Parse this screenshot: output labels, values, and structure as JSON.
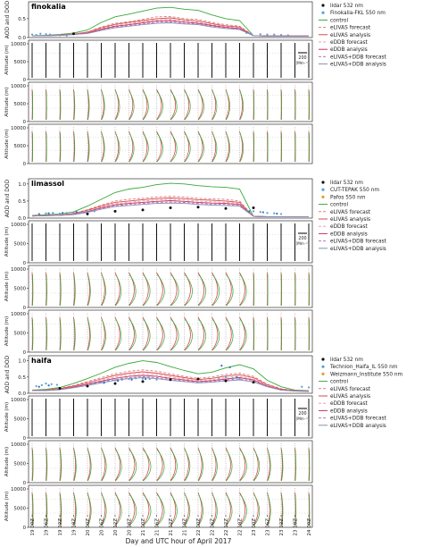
{
  "figure": {
    "xlabel": "Day and UTC hour of April 2017",
    "xticks": [
      "19 00Z",
      "19 06Z",
      "19 12Z",
      "19 18Z",
      "20 00Z",
      "20 06Z",
      "20 12Z",
      "20 18Z",
      "21 00Z",
      "21 06Z",
      "21 12Z",
      "21 18Z",
      "22 00Z",
      "22 06Z",
      "22 12Z",
      "22 18Z",
      "23 00Z",
      "23 06Z",
      "23 12Z",
      "23 18Z",
      "24 00Z"
    ]
  },
  "colors": {
    "control": "#3aa83a",
    "elivas_forecast": "#e07a7a",
    "elivas_analysis": "#d64a4a",
    "edbb_forecast": "#e8a0b0",
    "edbb_analysis": "#c9305a",
    "combo_forecast": "#b07ab8",
    "combo_analysis": "#8a8ab8",
    "lidar": "#111111",
    "obs1": "#5aa0d8",
    "obs2": "#e0a030",
    "obs3": "#3070c0"
  },
  "legend_common": [
    "control",
    "eLIVAS forecast",
    "eLIVAS analysis",
    "eDDB forecast",
    "eDDB analysis",
    "eLIVAS+DDB forecast",
    "eLIVAS+DDB analysis"
  ],
  "stations": [
    {
      "name": "finokalia",
      "aod_ylabel": "AOD and DOD",
      "alt_ylabel": "Altitude (m)",
      "alt_ticks": [
        "0",
        "5000",
        "10000"
      ],
      "aod_ticks": [
        "0.0",
        "0.5"
      ],
      "obs_legend": [
        "lidar 532 nm",
        "Finokalia-FKL 550 nm"
      ],
      "scale_label": "200",
      "scale_unit": "[Mm⁻¹]"
    },
    {
      "name": "limassol",
      "aod_ylabel": "AOD and DOD",
      "alt_ylabel": "Altitude (m)",
      "alt_ticks": [
        "0",
        "5000",
        "10000"
      ],
      "aod_ticks": [
        "0.0",
        "0.5",
        "1.0"
      ],
      "obs_legend": [
        "lidar 532 nm",
        "CUT-TEPAK 550 nm",
        "Pafos 550 nm"
      ],
      "scale_label": "200",
      "scale_unit": "[Mm⁻¹]"
    },
    {
      "name": "haifa",
      "aod_ylabel": "AOD and DOD",
      "alt_ylabel": "Altitude (m)",
      "alt_ticks": [
        "0",
        "5000",
        "10000"
      ],
      "aod_ticks": [
        "0.0",
        "0.5",
        "1.0"
      ],
      "obs_legend": [
        "lidar 532 nm",
        "Technion_Haifa_IL 550 nm",
        "Weizmann_Institute 550 nm"
      ],
      "scale_label": "200",
      "scale_unit": "[Mm⁻¹]"
    }
  ],
  "chart_data": [
    {
      "type": "line",
      "title": "finokalia",
      "ylabel": "AOD and DOD",
      "x": [
        "19 00Z",
        "19 06Z",
        "19 12Z",
        "19 18Z",
        "20 00Z",
        "20 06Z",
        "20 12Z",
        "20 18Z",
        "21 00Z",
        "21 06Z",
        "21 12Z",
        "21 18Z",
        "22 00Z",
        "22 06Z",
        "22 12Z",
        "22 18Z",
        "23 00Z",
        "23 06Z",
        "23 12Z",
        "23 18Z",
        "24 00Z"
      ],
      "ylim": [
        0,
        0.9
      ],
      "series": [
        {
          "name": "control",
          "values": [
            0.05,
            0.06,
            0.08,
            0.12,
            0.2,
            0.4,
            0.55,
            0.62,
            0.7,
            0.78,
            0.8,
            0.75,
            0.72,
            0.6,
            0.5,
            0.45,
            0.05,
            0.04,
            0.04,
            0.04,
            0.04
          ]
        },
        {
          "name": "eLIVAS forecast",
          "values": [
            0.05,
            0.05,
            0.07,
            0.1,
            0.15,
            0.28,
            0.38,
            0.42,
            0.48,
            0.55,
            0.56,
            0.5,
            0.48,
            0.4,
            0.34,
            0.3,
            0.05,
            0.04,
            0.04,
            0.04,
            0.04
          ]
        },
        {
          "name": "eLIVAS analysis",
          "values": [
            0.05,
            0.05,
            0.07,
            0.09,
            0.14,
            0.26,
            0.35,
            0.4,
            0.45,
            0.5,
            0.52,
            0.47,
            0.44,
            0.37,
            0.31,
            0.28,
            0.05,
            0.04,
            0.04,
            0.04,
            0.04
          ]
        },
        {
          "name": "eDDB forecast",
          "values": [
            0.05,
            0.05,
            0.06,
            0.09,
            0.13,
            0.24,
            0.33,
            0.37,
            0.42,
            0.47,
            0.48,
            0.44,
            0.41,
            0.34,
            0.29,
            0.26,
            0.05,
            0.04,
            0.04,
            0.04,
            0.04
          ]
        },
        {
          "name": "eDDB analysis",
          "values": [
            0.05,
            0.05,
            0.06,
            0.08,
            0.12,
            0.22,
            0.3,
            0.34,
            0.39,
            0.44,
            0.45,
            0.41,
            0.38,
            0.32,
            0.27,
            0.24,
            0.05,
            0.04,
            0.04,
            0.04,
            0.04
          ]
        },
        {
          "name": "eLIVAS+DDB forecast",
          "values": [
            0.05,
            0.05,
            0.06,
            0.08,
            0.11,
            0.2,
            0.28,
            0.32,
            0.36,
            0.41,
            0.42,
            0.38,
            0.36,
            0.3,
            0.25,
            0.22,
            0.05,
            0.04,
            0.04,
            0.04,
            0.04
          ]
        },
        {
          "name": "eLIVAS+DDB analysis",
          "values": [
            0.05,
            0.05,
            0.06,
            0.08,
            0.11,
            0.19,
            0.26,
            0.3,
            0.34,
            0.38,
            0.39,
            0.36,
            0.34,
            0.28,
            0.24,
            0.21,
            0.05,
            0.04,
            0.04,
            0.04,
            0.04
          ]
        }
      ],
      "points": [
        {
          "name": "lidar 532 nm",
          "x": [
            3
          ],
          "values": [
            0.1
          ]
        },
        {
          "name": "Finokalia-FKL 550 nm",
          "x": [
            0,
            0.3,
            0.6,
            1,
            1.3,
            2,
            2.5,
            15.5,
            15.8,
            16.5,
            17,
            17.5,
            18,
            18.5
          ],
          "values": [
            0.08,
            0.07,
            0.1,
            0.09,
            0.08,
            0.06,
            0.05,
            0.12,
            0.11,
            0.09,
            0.08,
            0.08,
            0.07,
            0.06
          ]
        }
      ]
    },
    {
      "type": "line",
      "title": "limassol",
      "ylabel": "AOD and DOD",
      "x": [
        "19 00Z",
        "19 06Z",
        "19 12Z",
        "19 18Z",
        "20 00Z",
        "20 06Z",
        "20 12Z",
        "20 18Z",
        "21 00Z",
        "21 06Z",
        "21 12Z",
        "21 18Z",
        "22 00Z",
        "22 06Z",
        "22 12Z",
        "22 18Z",
        "23 00Z",
        "23 06Z",
        "23 12Z",
        "23 18Z",
        "24 00Z"
      ],
      "ylim": [
        0,
        1.1
      ],
      "series": [
        {
          "name": "control",
          "values": [
            0.08,
            0.1,
            0.12,
            0.18,
            0.35,
            0.55,
            0.75,
            0.85,
            0.9,
            0.98,
            1.02,
            1.0,
            0.95,
            0.92,
            0.9,
            0.85,
            0.05,
            0.04,
            0.04,
            0.04,
            0.04
          ]
        },
        {
          "name": "eLIVAS forecast",
          "values": [
            0.07,
            0.08,
            0.1,
            0.14,
            0.25,
            0.38,
            0.5,
            0.55,
            0.58,
            0.62,
            0.64,
            0.62,
            0.58,
            0.56,
            0.55,
            0.5,
            0.05,
            0.04,
            0.04,
            0.04,
            0.04
          ]
        },
        {
          "name": "eLIVAS analysis",
          "values": [
            0.07,
            0.08,
            0.09,
            0.13,
            0.23,
            0.35,
            0.46,
            0.5,
            0.54,
            0.57,
            0.59,
            0.57,
            0.54,
            0.52,
            0.5,
            0.46,
            0.05,
            0.04,
            0.04,
            0.04,
            0.04
          ]
        },
        {
          "name": "eDDB forecast",
          "values": [
            0.07,
            0.08,
            0.09,
            0.12,
            0.21,
            0.32,
            0.42,
            0.46,
            0.5,
            0.53,
            0.55,
            0.53,
            0.5,
            0.48,
            0.46,
            0.43,
            0.05,
            0.04,
            0.04,
            0.04,
            0.04
          ]
        },
        {
          "name": "eDDB analysis",
          "values": [
            0.06,
            0.07,
            0.08,
            0.11,
            0.19,
            0.3,
            0.39,
            0.43,
            0.46,
            0.49,
            0.51,
            0.49,
            0.46,
            0.44,
            0.43,
            0.4,
            0.05,
            0.04,
            0.04,
            0.04,
            0.04
          ]
        },
        {
          "name": "eLIVAS+DDB forecast",
          "values": [
            0.06,
            0.07,
            0.08,
            0.11,
            0.18,
            0.28,
            0.36,
            0.4,
            0.43,
            0.46,
            0.47,
            0.46,
            0.43,
            0.41,
            0.4,
            0.37,
            0.05,
            0.04,
            0.04,
            0.04,
            0.04
          ]
        },
        {
          "name": "eLIVAS+DDB analysis",
          "values": [
            0.06,
            0.07,
            0.08,
            0.1,
            0.17,
            0.26,
            0.34,
            0.37,
            0.4,
            0.43,
            0.44,
            0.43,
            0.4,
            0.38,
            0.37,
            0.35,
            0.05,
            0.04,
            0.04,
            0.04,
            0.04
          ]
        }
      ],
      "points": [
        {
          "name": "lidar 532 nm",
          "x": [
            4,
            6,
            8,
            10,
            12,
            14,
            16
          ],
          "values": [
            0.12,
            0.2,
            0.24,
            0.3,
            0.32,
            0.28,
            0.3
          ]
        },
        {
          "name": "CUT-TEPAK 550 nm",
          "x": [
            1,
            1.5,
            2,
            2.5,
            3,
            3.5,
            4,
            4.5,
            15.5,
            16,
            16.5,
            17,
            17.5,
            18
          ],
          "values": [
            0.14,
            0.15,
            0.13,
            0.15,
            0.16,
            0.17,
            0.19,
            0.2,
            0.22,
            0.2,
            0.18,
            0.15,
            0.14,
            0.12
          ]
        },
        {
          "name": "Pafos 550 nm",
          "x": [
            0.5,
            1.2,
            2.2,
            3.2,
            15.7,
            16.7,
            17.7
          ],
          "values": [
            0.12,
            0.14,
            0.15,
            0.18,
            0.2,
            0.17,
            0.13
          ]
        }
      ]
    },
    {
      "type": "line",
      "title": "haifa",
      "ylabel": "AOD and DOD",
      "x": [
        "19 00Z",
        "19 06Z",
        "19 12Z",
        "19 18Z",
        "20 00Z",
        "20 06Z",
        "20 12Z",
        "20 18Z",
        "21 00Z",
        "21 06Z",
        "21 12Z",
        "21 18Z",
        "22 00Z",
        "22 06Z",
        "22 12Z",
        "22 18Z",
        "23 00Z",
        "23 06Z",
        "23 12Z",
        "23 18Z",
        "24 00Z"
      ],
      "ylim": [
        0,
        1.1
      ],
      "series": [
        {
          "name": "control",
          "values": [
            0.1,
            0.12,
            0.18,
            0.3,
            0.45,
            0.62,
            0.8,
            0.92,
            1.0,
            0.95,
            0.82,
            0.7,
            0.6,
            0.65,
            0.78,
            0.88,
            0.75,
            0.4,
            0.2,
            0.1,
            0.08
          ]
        },
        {
          "name": "eLIVAS forecast",
          "values": [
            0.09,
            0.1,
            0.15,
            0.24,
            0.36,
            0.48,
            0.6,
            0.68,
            0.72,
            0.68,
            0.6,
            0.52,
            0.46,
            0.5,
            0.58,
            0.62,
            0.52,
            0.28,
            0.14,
            0.08,
            0.07
          ]
        },
        {
          "name": "eLIVAS analysis",
          "values": [
            0.09,
            0.1,
            0.14,
            0.22,
            0.33,
            0.44,
            0.55,
            0.62,
            0.66,
            0.62,
            0.55,
            0.48,
            0.42,
            0.46,
            0.53,
            0.57,
            0.48,
            0.26,
            0.13,
            0.08,
            0.07
          ]
        },
        {
          "name": "eDDB forecast",
          "values": [
            0.08,
            0.09,
            0.13,
            0.2,
            0.3,
            0.4,
            0.5,
            0.57,
            0.6,
            0.57,
            0.5,
            0.44,
            0.39,
            0.42,
            0.48,
            0.52,
            0.44,
            0.24,
            0.12,
            0.07,
            0.06
          ]
        },
        {
          "name": "eDDB analysis",
          "values": [
            0.08,
            0.09,
            0.12,
            0.19,
            0.28,
            0.37,
            0.46,
            0.52,
            0.55,
            0.52,
            0.46,
            0.41,
            0.36,
            0.39,
            0.44,
            0.48,
            0.41,
            0.22,
            0.11,
            0.07,
            0.06
          ]
        },
        {
          "name": "eLIVAS+DDB forecast",
          "values": [
            0.08,
            0.09,
            0.12,
            0.18,
            0.26,
            0.34,
            0.42,
            0.48,
            0.51,
            0.48,
            0.43,
            0.38,
            0.34,
            0.36,
            0.41,
            0.44,
            0.38,
            0.21,
            0.1,
            0.07,
            0.06
          ]
        },
        {
          "name": "eLIVAS+DDB analysis",
          "values": [
            0.08,
            0.08,
            0.11,
            0.17,
            0.24,
            0.32,
            0.4,
            0.45,
            0.48,
            0.45,
            0.4,
            0.36,
            0.32,
            0.34,
            0.38,
            0.41,
            0.35,
            0.2,
            0.1,
            0.07,
            0.06
          ]
        }
      ],
      "points": [
        {
          "name": "lidar 532 nm",
          "x": [
            2,
            4,
            6,
            8,
            10,
            12,
            14,
            16
          ],
          "values": [
            0.15,
            0.22,
            0.3,
            0.36,
            0.42,
            0.44,
            0.38,
            0.34
          ]
        },
        {
          "name": "Technion_Haifa_IL 550 nm",
          "x": [
            0.3,
            0.7,
            1,
            1.4,
            1.8,
            4.5,
            5,
            5.5,
            6,
            6.5,
            7,
            7.5,
            8,
            8.5,
            9,
            13.5,
            14,
            14.5,
            15,
            19.5,
            20
          ],
          "values": [
            0.22,
            0.25,
            0.3,
            0.28,
            0.26,
            0.3,
            0.34,
            0.38,
            0.4,
            0.42,
            0.44,
            0.46,
            0.45,
            0.44,
            0.42,
            0.48,
            0.5,
            0.46,
            0.44,
            0.2,
            0.18
          ]
        },
        {
          "name": "Weizmann_Institute 550 nm",
          "x": [
            0.5,
            1.2,
            5.2,
            6.2,
            7.2,
            8.2,
            13.7,
            14.3,
            14.8
          ],
          "values": [
            0.2,
            0.24,
            0.32,
            0.38,
            0.42,
            0.44,
            0.85,
            0.8,
            0.5
          ]
        }
      ]
    }
  ]
}
